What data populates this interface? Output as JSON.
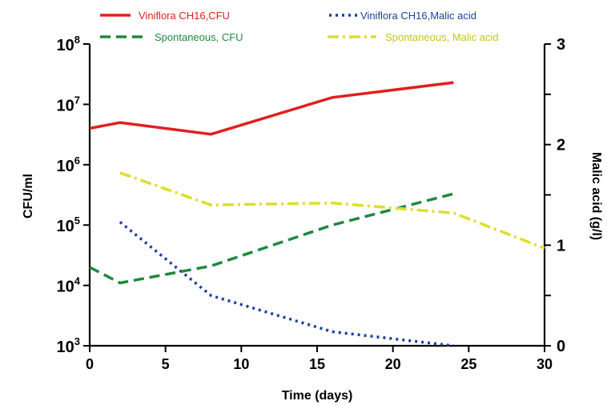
{
  "chart_data": {
    "type": "line",
    "xlabel": "Time (days)",
    "ylabel_left": "CFU/ml",
    "ylabel_right": "Malic acid (g/l)",
    "xlim": [
      0,
      30
    ],
    "x_ticks": [
      0,
      5,
      10,
      15,
      20,
      25,
      30
    ],
    "ylim_left": [
      1000,
      100000000
    ],
    "y_left_scale": "log",
    "y_left_ticks": [
      {
        "base": "10",
        "exp": "3",
        "value": 1000
      },
      {
        "base": "10",
        "exp": "4",
        "value": 10000
      },
      {
        "base": "10",
        "exp": "5",
        "value": 100000
      },
      {
        "base": "10",
        "exp": "6",
        "value": 1000000
      },
      {
        "base": "10",
        "exp": "7",
        "value": 10000000
      },
      {
        "base": "10",
        "exp": "8",
        "value": 100000000
      }
    ],
    "ylim_right": [
      0,
      3
    ],
    "y_right_ticks": [
      0,
      1,
      2,
      3
    ],
    "y_right_minor_ticks": [
      0.5,
      1.5,
      2.5
    ],
    "grid": false,
    "legend_position": "top",
    "series": [
      {
        "name": "Viniflora CH16,CFU",
        "axis": "left",
        "color": "#e0201e",
        "style": "solid",
        "x": [
          0,
          2,
          8,
          16,
          24
        ],
        "y": [
          4000000,
          5000000,
          3200000,
          13000000,
          23000000
        ]
      },
      {
        "name": "Viniflora CH16,Malic acid",
        "axis": "right",
        "color": "#1a3fa0",
        "style": "dotted",
        "x": [
          2,
          8,
          16,
          24
        ],
        "y": [
          1.23,
          0.5,
          0.14,
          0.0
        ]
      },
      {
        "name": "Spontaneous,  CFU",
        "axis": "left",
        "color": "#1e8a3c",
        "style": "dashed",
        "x": [
          0,
          2,
          8,
          16,
          24
        ],
        "y": [
          20000,
          11000,
          21000,
          100000,
          330000
        ]
      },
      {
        "name": "Spontaneous,  Malic acid",
        "axis": "right",
        "color": "#dede2a",
        "style": "dashdot",
        "x": [
          2,
          8,
          16,
          24,
          30
        ],
        "y": [
          1.72,
          1.4,
          1.42,
          1.32,
          0.97
        ]
      }
    ]
  }
}
